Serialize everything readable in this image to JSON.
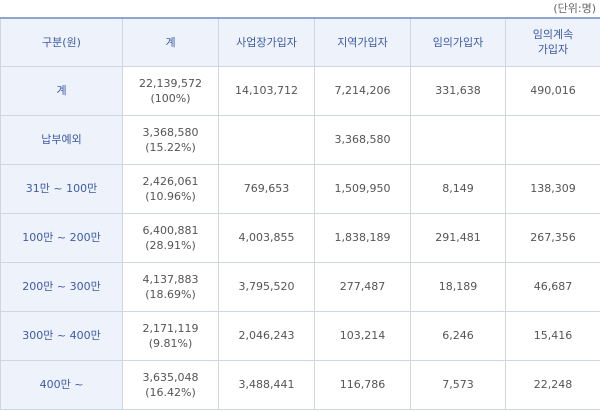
{
  "unit_label": "(단위:명)",
  "headers": [
    "구분(원)",
    "계",
    "사업장가입자",
    "지역가입자",
    "임의가입자",
    "임의계속\n가입자"
  ],
  "rows": [
    {
      "label": "계",
      "total": "22,139,572",
      "pct": "(100%)",
      "cells": [
        "14,103,712",
        "7,214,206",
        "331,638",
        "490,016"
      ]
    },
    {
      "label": "납부예외",
      "total": "3,368,580",
      "pct": "(15.22%)",
      "cells": [
        "",
        "3,368,580",
        "",
        ""
      ]
    },
    {
      "label": "31만 ~ 100만",
      "total": "2,426,061",
      "pct": "(10.96%)",
      "cells": [
        "769,653",
        "1,509,950",
        "8,149",
        "138,309"
      ]
    },
    {
      "label": "100만 ~ 200만",
      "total": "6,400,881",
      "pct": "(28.91%)",
      "cells": [
        "4,003,855",
        "1,838,189",
        "291,481",
        "267,356"
      ]
    },
    {
      "label": "200만 ~ 300만",
      "total": "4,137,883",
      "pct": "(18.69%)",
      "cells": [
        "3,795,520",
        "277,487",
        "18,189",
        "46,687"
      ]
    },
    {
      "label": "300만 ~ 400만",
      "total": "2,171,119",
      "pct": "(9.81%)",
      "cells": [
        "2,046,243",
        "103,214",
        "6,246",
        "15,416"
      ]
    },
    {
      "label": "400만 ~",
      "total": "3,635,048",
      "pct": "(16.42%)",
      "cells": [
        "3,488,441",
        "116,786",
        "7,573",
        "22,248"
      ]
    }
  ]
}
